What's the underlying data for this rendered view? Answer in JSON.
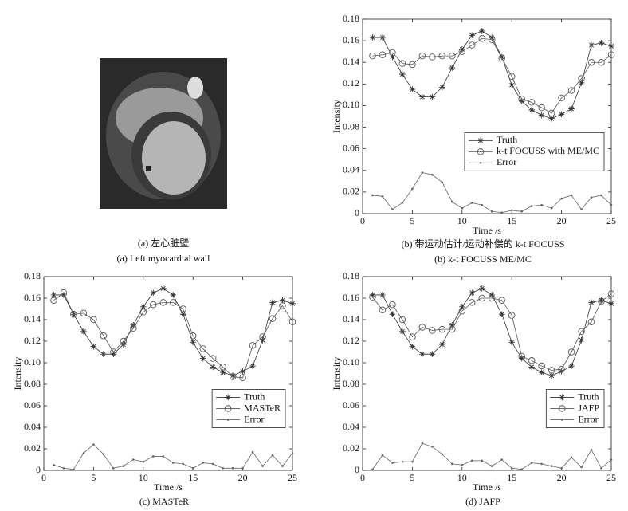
{
  "image_panel": {
    "caption_cn": "(a) 左心脏壁",
    "caption_en": "(a) Left myocardial wall"
  },
  "chart_data": [
    {
      "type": "line",
      "caption_cn": "(b) 带运动估计/运动补偿的 k-t FOCUSS",
      "caption": "(b) k-t FOCUSS ME/MC",
      "xlabel": "Time /s",
      "ylabel": "Intensity",
      "xlim": [
        0,
        25
      ],
      "ylim": [
        0,
        0.18
      ],
      "xticks": [
        0,
        5,
        10,
        15,
        20,
        25
      ],
      "yticks": [
        0,
        0.02,
        0.04,
        0.06,
        0.08,
        {
          "value": 0.1,
          "label": "0.10"
        },
        0.12,
        0.14,
        0.16,
        0.18
      ],
      "grid": false,
      "legend": "lower right",
      "x": [
        1,
        2,
        3,
        4,
        5,
        6,
        7,
        8,
        9,
        10,
        11,
        12,
        13,
        14,
        15,
        16,
        17,
        18,
        19,
        20,
        21,
        22,
        23,
        24,
        25
      ],
      "series": [
        {
          "name": "Truth",
          "color": "#333333",
          "marker": "star",
          "values": [
            0.163,
            0.163,
            0.145,
            0.129,
            0.115,
            0.108,
            0.108,
            0.117,
            0.135,
            0.152,
            0.165,
            0.169,
            0.163,
            0.145,
            0.119,
            0.104,
            0.096,
            0.091,
            0.088,
            0.092,
            0.097,
            0.121,
            0.156,
            0.158,
            0.155
          ]
        },
        {
          "name": "k-t FOCUSS with ME/MC",
          "color": "#555555",
          "marker": "circle",
          "values": [
            0.146,
            0.147,
            0.149,
            0.139,
            0.138,
            0.146,
            0.145,
            0.146,
            0.146,
            0.15,
            0.156,
            0.162,
            0.161,
            0.144,
            0.127,
            0.106,
            0.103,
            0.098,
            0.093,
            0.107,
            0.114,
            0.125,
            0.14,
            0.14,
            0.147
          ]
        },
        {
          "name": "Error",
          "color": "#666666",
          "marker": "dot",
          "values": [
            0.017,
            0.016,
            0.004,
            0.01,
            0.023,
            0.038,
            0.036,
            0.029,
            0.011,
            0.005,
            0.01,
            0.008,
            0.002,
            0.001,
            0.003,
            0.002,
            0.007,
            0.008,
            0.005,
            0.014,
            0.017,
            0.004,
            0.015,
            0.017,
            0.008
          ]
        }
      ]
    },
    {
      "type": "line",
      "caption": "(c) MASTeR",
      "xlabel": "Time /s",
      "ylabel": "Intensity",
      "xlim": [
        0,
        25
      ],
      "ylim": [
        0,
        0.18
      ],
      "xticks": [
        0,
        5,
        10,
        15,
        20,
        25
      ],
      "yticks": [
        0,
        0.02,
        0.04,
        0.06,
        0.08,
        {
          "value": 0.1,
          "label": "0.10"
        },
        0.12,
        0.14,
        0.16,
        0.18
      ],
      "grid": false,
      "legend": "lower right",
      "x": [
        1,
        2,
        3,
        4,
        5,
        6,
        7,
        8,
        9,
        10,
        11,
        12,
        13,
        14,
        15,
        16,
        17,
        18,
        19,
        20,
        21,
        22,
        23,
        24,
        25
      ],
      "series": [
        {
          "name": "Truth",
          "color": "#333333",
          "marker": "star",
          "values": [
            0.163,
            0.163,
            0.145,
            0.129,
            0.115,
            0.108,
            0.108,
            0.117,
            0.135,
            0.152,
            0.165,
            0.169,
            0.163,
            0.145,
            0.119,
            0.104,
            0.096,
            0.091,
            0.088,
            0.092,
            0.097,
            0.121,
            0.156,
            0.158,
            0.155
          ]
        },
        {
          "name": "MASTeR",
          "color": "#555555",
          "marker": "circle",
          "values": [
            0.158,
            0.165,
            0.145,
            0.146,
            0.14,
            0.125,
            0.11,
            0.12,
            0.132,
            0.147,
            0.154,
            0.156,
            0.156,
            0.15,
            0.125,
            0.113,
            0.104,
            0.096,
            0.087,
            0.086,
            0.116,
            0.124,
            0.141,
            0.153,
            0.138
          ]
        },
        {
          "name": "Error",
          "color": "#666666",
          "marker": "dot",
          "values": [
            0.005,
            0.002,
            0.001,
            0.016,
            0.024,
            0.015,
            0.002,
            0.004,
            0.01,
            0.008,
            0.013,
            0.013,
            0.007,
            0.006,
            0.002,
            0.007,
            0.006,
            0.002,
            0.002,
            0.002,
            0.017,
            0.004,
            0.014,
            0.004,
            0.016
          ]
        }
      ]
    },
    {
      "type": "line",
      "caption": "(d) JAFP",
      "xlabel": "Time /s",
      "ylabel": "Intensity",
      "xlim": [
        0,
        25
      ],
      "ylim": [
        0,
        0.18
      ],
      "xticks": [
        0,
        5,
        10,
        15,
        20,
        25
      ],
      "yticks": [
        0,
        0.02,
        0.04,
        0.06,
        0.08,
        {
          "value": 0.1,
          "label": "0.10"
        },
        0.12,
        0.14,
        0.16,
        0.18
      ],
      "grid": false,
      "legend": "lower right",
      "x": [
        1,
        2,
        3,
        4,
        5,
        6,
        7,
        8,
        9,
        10,
        11,
        12,
        13,
        14,
        15,
        16,
        17,
        18,
        19,
        20,
        21,
        22,
        23,
        24,
        25
      ],
      "series": [
        {
          "name": "Truth",
          "color": "#333333",
          "marker": "star",
          "values": [
            0.163,
            0.163,
            0.145,
            0.129,
            0.115,
            0.108,
            0.108,
            0.117,
            0.135,
            0.152,
            0.165,
            0.169,
            0.163,
            0.145,
            0.119,
            0.104,
            0.096,
            0.091,
            0.088,
            0.092,
            0.097,
            0.121,
            0.156,
            0.158,
            0.155
          ]
        },
        {
          "name": "JAFP",
          "color": "#555555",
          "marker": "circle",
          "values": [
            0.161,
            0.149,
            0.154,
            0.14,
            0.124,
            0.133,
            0.13,
            0.131,
            0.131,
            0.148,
            0.156,
            0.16,
            0.16,
            0.158,
            0.144,
            0.106,
            0.102,
            0.097,
            0.093,
            0.094,
            0.11,
            0.129,
            0.138,
            0.157,
            0.164
          ]
        },
        {
          "name": "Error",
          "color": "#666666",
          "marker": "dot",
          "values": [
            0.001,
            0.014,
            0.007,
            0.008,
            0.008,
            0.025,
            0.022,
            0.015,
            0.006,
            0.005,
            0.009,
            0.009,
            0.004,
            0.01,
            0.002,
            0.001,
            0.007,
            0.006,
            0.004,
            0.002,
            0.012,
            0.003,
            0.019,
            0.002,
            0.01
          ]
        }
      ]
    }
  ]
}
